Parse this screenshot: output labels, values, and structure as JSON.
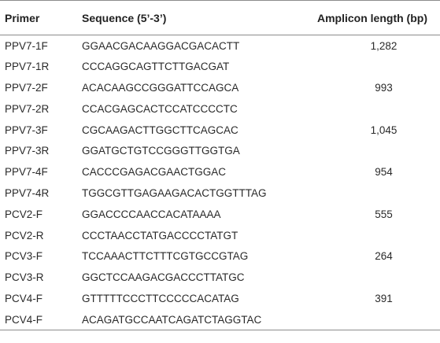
{
  "table": {
    "headers": {
      "primer": "Primer",
      "sequence": "Sequence (5’-3’)",
      "amplicon": "Amplicon length (bp)"
    },
    "rows": [
      {
        "primer": "PPV7-1F",
        "sequence": "GGAACGACAAGGACGACACTT",
        "length": "1,282"
      },
      {
        "primer": "PPV7-1R",
        "sequence": "CCCAGGCAGTTCTTGACGAT",
        "length": ""
      },
      {
        "primer": "PPV7-2F",
        "sequence": "ACACAAGCCGGGATTCCAGCA",
        "length": "993"
      },
      {
        "primer": "PPV7-2R",
        "sequence": "CCACGAGCACTCCATCCCCTC",
        "length": ""
      },
      {
        "primer": "PPV7-3F",
        "sequence": "CGCAAGACTTGGCTTCAGCAC",
        "length": "1,045"
      },
      {
        "primer": "PPV7-3R",
        "sequence": "GGATGCTGTCCGGGTTGGTGA",
        "length": ""
      },
      {
        "primer": "PPV7-4F",
        "sequence": "CACCCGAGACGAACTGGAC",
        "length": "954"
      },
      {
        "primer": "PPV7-4R",
        "sequence": "TGGCGTTGAGAAGACACTGGTTTAG",
        "length": ""
      },
      {
        "primer": "PCV2-F",
        "sequence": "GGACCCCAACCACATAAAA",
        "length": "555"
      },
      {
        "primer": "PCV2-R",
        "sequence": "CCCTAACCTATGACCCCTATGT",
        "length": ""
      },
      {
        "primer": "PCV3-F",
        "sequence": "TCCAAACTTCTTTCGTGCCGTAG",
        "length": "264"
      },
      {
        "primer": "PCV3-R",
        "sequence": "GGCTCCAAGACGACCCTTATGC",
        "length": ""
      },
      {
        "primer": "PCV4-F",
        "sequence": "GTTTTTCCCTTCCCCCACATAG",
        "length": "391"
      },
      {
        "primer": "PCV4-F",
        "sequence": "ACAGATGCCAATCAGATCTAGGTAC",
        "length": ""
      }
    ]
  }
}
